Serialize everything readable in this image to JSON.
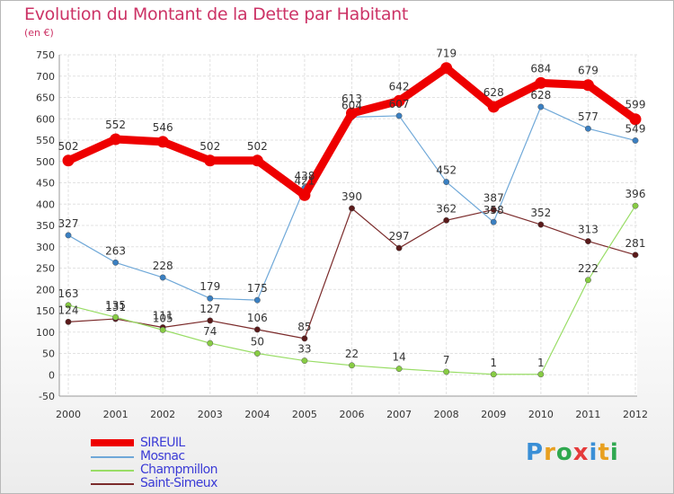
{
  "title": "Evolution du Montant de la Dette par Habitant",
  "unit": "(en €)",
  "brand": "Proxiti",
  "chart_data": {
    "type": "line",
    "x": [
      "2000",
      "2001",
      "2002",
      "2003",
      "2004",
      "2005",
      "2006",
      "2007",
      "2008",
      "2009",
      "2010",
      "2011",
      "2012"
    ],
    "ylim": [
      -50,
      750
    ],
    "yticks": [
      -50,
      0,
      50,
      100,
      150,
      200,
      250,
      300,
      350,
      400,
      450,
      500,
      550,
      600,
      650,
      700,
      750
    ],
    "grid": true,
    "legend_position": "bottom-left",
    "series": [
      {
        "name": "SIREUIL",
        "color": "#ee0000",
        "marker": "#ee0000",
        "values": [
          502,
          552,
          546,
          502,
          502,
          421,
          613,
          642,
          719,
          628,
          684,
          679,
          599
        ],
        "labels": [
          "502",
          "552",
          "546",
          "502",
          "502",
          "421",
          "613",
          "642",
          "719",
          "628",
          "684",
          "679",
          "599"
        ]
      },
      {
        "name": "Mosnac",
        "color": "#6fa8d8",
        "marker": "#3a7fc1",
        "values": [
          327,
          263,
          228,
          179,
          175,
          438,
          604,
          607,
          452,
          358,
          628,
          577,
          549
        ],
        "labels": [
          "327",
          "263",
          "228",
          "179",
          "175",
          "438",
          "604",
          "607",
          "452",
          "358",
          "628",
          "577",
          "549"
        ]
      },
      {
        "name": "Champmillon",
        "color": "#99dd66",
        "marker": "#88cc44",
        "values": [
          163,
          135,
          105,
          74,
          50,
          33,
          22,
          14,
          7,
          1,
          1,
          222,
          396
        ],
        "labels": [
          "163",
          "135",
          "105",
          "74",
          "50",
          "33",
          "22",
          "14",
          "7",
          "1",
          "1",
          "222",
          "396"
        ]
      },
      {
        "name": "Saint-Simeux",
        "color": "#7b2b2b",
        "marker": "#5a1a1a",
        "values": [
          124,
          131,
          111,
          127,
          106,
          85,
          390,
          297,
          362,
          387,
          352,
          313,
          281
        ],
        "labels": [
          "124",
          "131",
          "111",
          "127",
          "106",
          "85",
          "390",
          "297",
          "362",
          "387",
          "352",
          "313",
          "281"
        ]
      }
    ]
  }
}
